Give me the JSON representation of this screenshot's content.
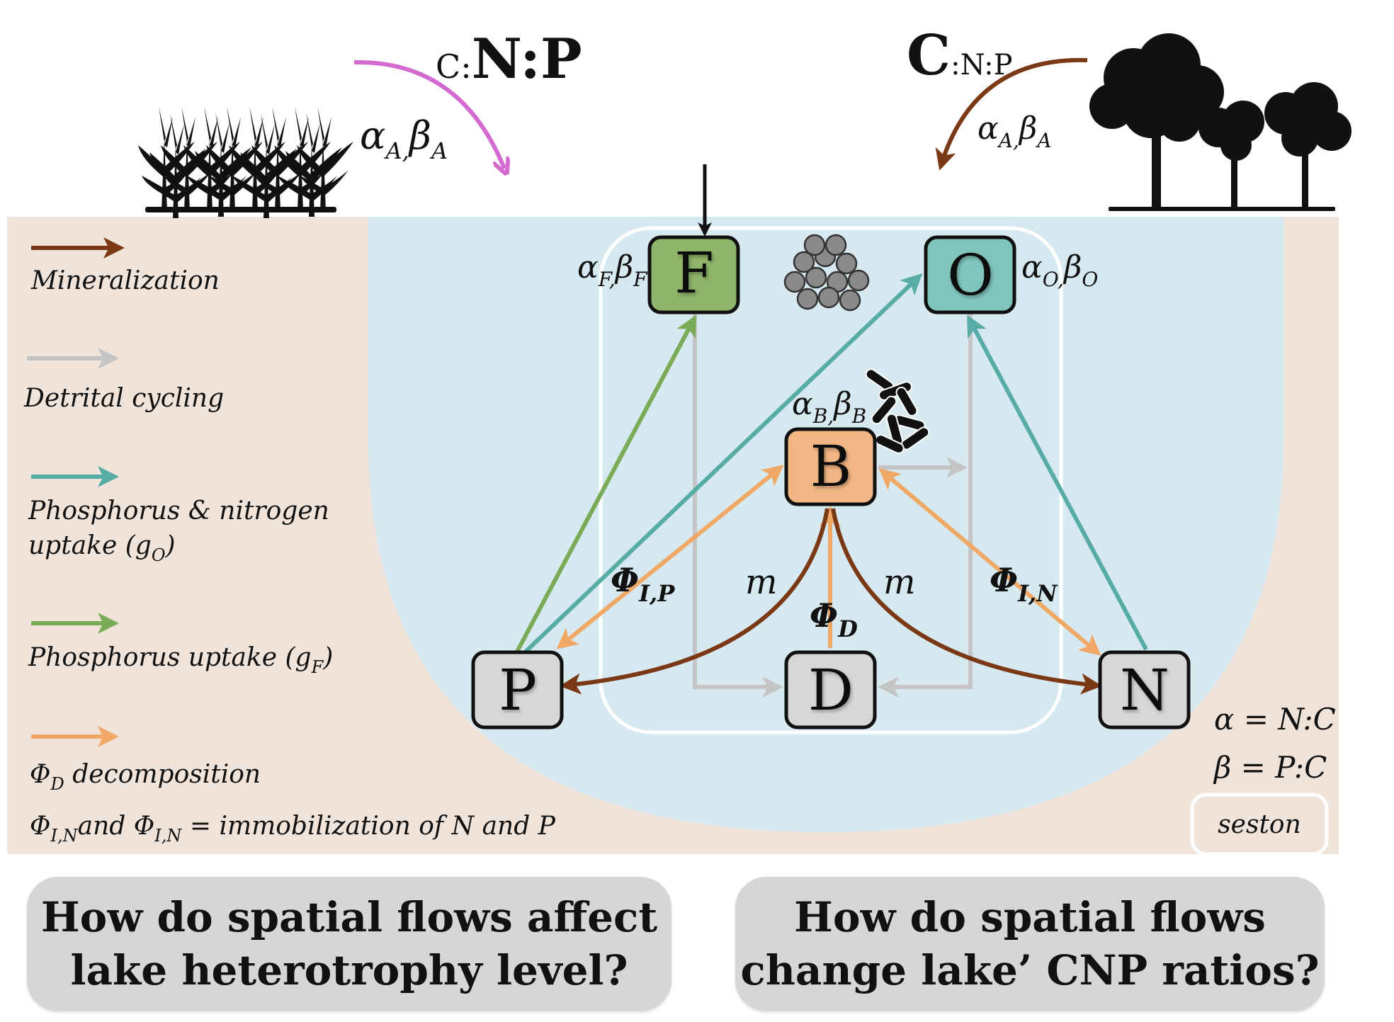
{
  "header": {
    "left_label_small": "C:",
    "left_label_big": "N:P",
    "left_coeff": "α",
    "left_coeff_sub": "A,",
    "left_coeff2": "β",
    "left_coeff2_sub": "A",
    "right_label_big": "C",
    "right_label_small": ":N:P",
    "right_coeff": "α",
    "right_coeff_sub": "A,",
    "right_coeff2": "β",
    "right_coeff2_sub": "A"
  },
  "nodes": {
    "F": {
      "label": "F",
      "coeff": "α",
      "coeff_sub": "F,",
      "coeff2": "β",
      "coeff2_sub": "F",
      "fill": "#8fb56a"
    },
    "O": {
      "label": "O",
      "coeff": "α",
      "coeff_sub": "O,",
      "coeff2": "β",
      "coeff2_sub": "O",
      "fill": "#80c5bd"
    },
    "B": {
      "label": "B",
      "coeff": "α",
      "coeff_sub": "B,",
      "coeff2": "β",
      "coeff2_sub": "B",
      "fill": "#f2b684"
    },
    "P": {
      "label": "P",
      "fill": "#d7d7d7"
    },
    "D": {
      "label": "D",
      "fill": "#d7d7d7"
    },
    "N": {
      "label": "N",
      "fill": "#d7d7d7"
    }
  },
  "flow_labels": {
    "phi_ip": "Φ",
    "phi_ip_sub": "I,P",
    "phi_in": "Φ",
    "phi_in_sub": "I,N",
    "phi_d": "Φ",
    "phi_d_sub": "D",
    "m_left": "m",
    "m_right": "m"
  },
  "legend": {
    "mineralization": {
      "label": "Mineralization",
      "color": "#7a3815"
    },
    "detrital": {
      "label": "Detrital cycling",
      "color": "#c4c4c4"
    },
    "pn_uptake": {
      "line1": "Phosphorus & nitrogen",
      "line2": "uptake (g",
      "sub": "O",
      "close": ")",
      "color": "#57aca6"
    },
    "p_uptake": {
      "label": "Phosphorus uptake (g",
      "sub": "F",
      "close": ")",
      "color": "#7aab57"
    },
    "decomp": {
      "sym": "Φ",
      "sub": "D",
      "label": " decomposition",
      "color": "#f0a866"
    },
    "immob": {
      "sym1": "Φ",
      "sub1": "I,N",
      "mid": "and ",
      "sym2": "Φ",
      "sub2": "I,N",
      "rest": " = immobilization of N and P"
    }
  },
  "definitions": {
    "alpha": "α = N:C",
    "beta": "β = P:C",
    "seston": "seston"
  },
  "questions": {
    "left": {
      "line1": "How do spatial flows affect",
      "line2": "lake heterotrophy level?"
    },
    "right": {
      "line1": "How do spatial flows",
      "line2": "change lake’ CNP ratios?"
    }
  },
  "colors": {
    "beige": "#f0e3d9",
    "water": "#d6e9f0",
    "pink": "#d46ad0",
    "brown": "#7a3815",
    "gray": "#c4c4c4",
    "teal": "#57aca6",
    "green": "#7aab57",
    "orange": "#f0a866"
  },
  "icons": {
    "plants": "corn-plants-icon",
    "trees": "trees-icon",
    "algae": "algae-cluster-icon",
    "bacteria": "bacteria-icon"
  }
}
